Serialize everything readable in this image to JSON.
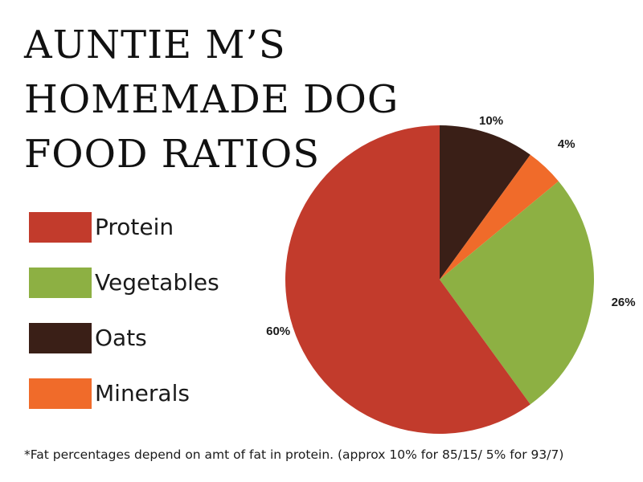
{
  "title_lines": [
    "AUNTIE M’S",
    "HOMEMADE DOG",
    "FOOD RATIOS"
  ],
  "chart_data": {
    "type": "pie",
    "title": "AUNTIE M’S HOMEMADE DOG FOOD RATIOS",
    "legend_position": "left",
    "series": [
      {
        "name": "Oats",
        "value": 10,
        "label": "10%",
        "color": "#3a1f17"
      },
      {
        "name": "Minerals",
        "value": 4,
        "label": "4%",
        "color": "#f06b2a"
      },
      {
        "name": "Vegetables",
        "value": 26,
        "label": "26%",
        "color": "#8db043"
      },
      {
        "name": "Protein",
        "value": 60,
        "label": "60%",
        "color": "#c23b2c"
      }
    ]
  },
  "legend": [
    {
      "label": "Protein",
      "color": "#c23b2c"
    },
    {
      "label": "Vegetables",
      "color": "#8db043"
    },
    {
      "label": "Oats",
      "color": "#3a1f17"
    },
    {
      "label": "Minerals",
      "color": "#f06b2a"
    }
  ],
  "footnote": "*Fat percentages depend on amt of fat in protein. (approx 10% for 85/15/ 5% for 93/7)"
}
